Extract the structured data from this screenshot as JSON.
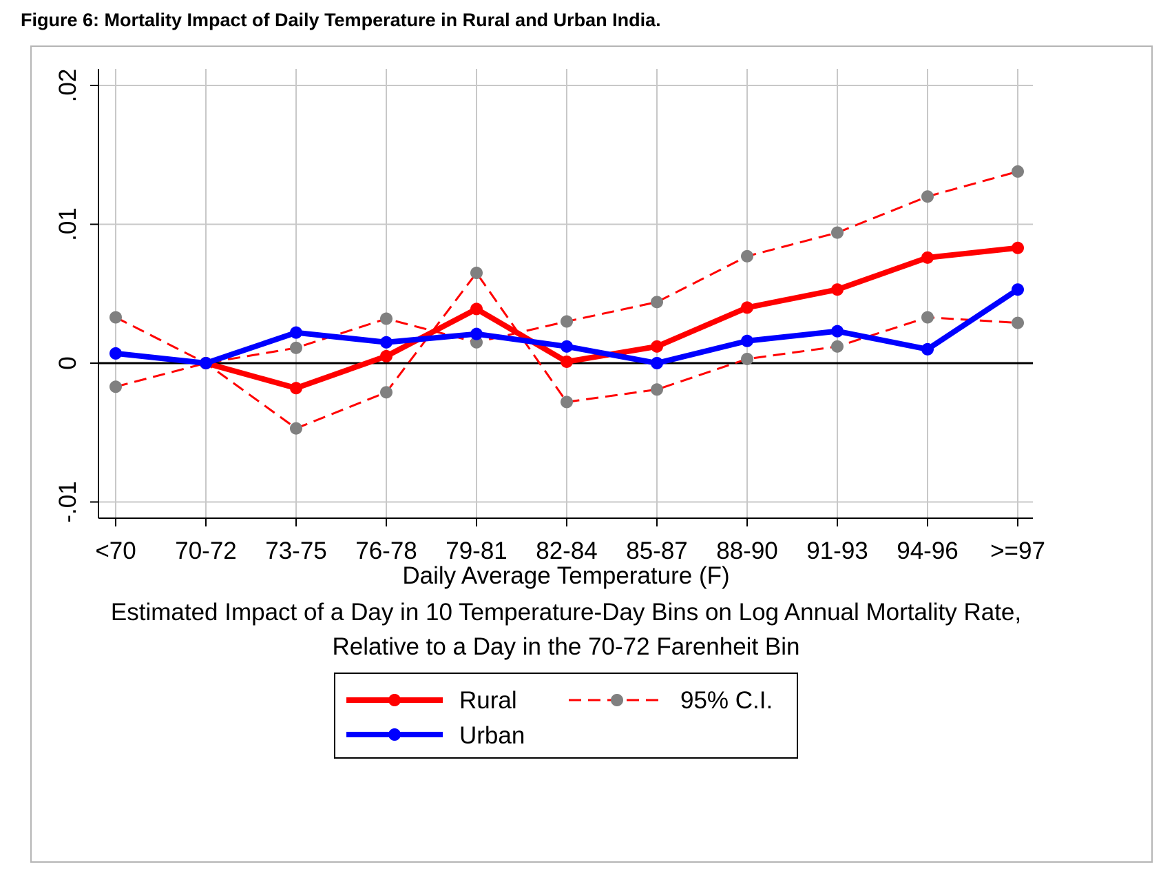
{
  "figure_title": "Figure 6: Mortality Impact of Daily Temperature in Rural and Urban India.",
  "chart_data": {
    "type": "line",
    "title": "",
    "xlabel": "Daily Average Temperature (F)",
    "subtitle_lines": [
      "Estimated Impact of a Day in 10 Temperature-Day Bins on Log Annual Mortality Rate,",
      "Relative to a Day in the 70-72 Farenheit Bin"
    ],
    "ylabel": "",
    "categories": [
      "<70",
      "70-72",
      "73-75",
      "76-78",
      "79-81",
      "82-84",
      "85-87",
      "88-90",
      "91-93",
      "94-96",
      ">=97"
    ],
    "ylim": [
      -0.0112,
      0.0211
    ],
    "yticks": [
      -0.01,
      0,
      0.01,
      0.02
    ],
    "ytick_labels": [
      "-.01",
      "0",
      ".01",
      ".02"
    ],
    "grid": true,
    "legend_position": "bottom",
    "series": [
      {
        "name": "Rural",
        "color": "#ff0000",
        "style": "solid-thick",
        "values": [
          null,
          0,
          -0.0018,
          0.0005,
          0.0039,
          0.0001,
          0.0012,
          0.004,
          0.0053,
          0.0076,
          0.0083
        ]
      },
      {
        "name": "Urban",
        "color": "#0000ff",
        "style": "solid-thick",
        "values": [
          0.0007,
          0,
          0.0022,
          0.0015,
          0.0021,
          0.0012,
          0,
          0.0016,
          0.0023,
          0.001,
          0.0053
        ]
      },
      {
        "name": "95% C.I.",
        "color": "#ff0000",
        "marker_color": "#808080",
        "style": "dashed",
        "values": [
          0.0033,
          0,
          -0.0047,
          -0.0021,
          0.0065,
          -0.0028,
          -0.0019,
          0.0003,
          0.0012,
          0.0033,
          0.0029
        ]
      },
      {
        "name": "95% C.I.",
        "color": "#ff0000",
        "marker_color": "#808080",
        "style": "dashed",
        "legend": false,
        "values": [
          -0.0017,
          0,
          0.0011,
          0.0032,
          0.0015,
          0.003,
          0.0044,
          0.0077,
          0.0094,
          0.012,
          0.0138
        ]
      }
    ]
  }
}
